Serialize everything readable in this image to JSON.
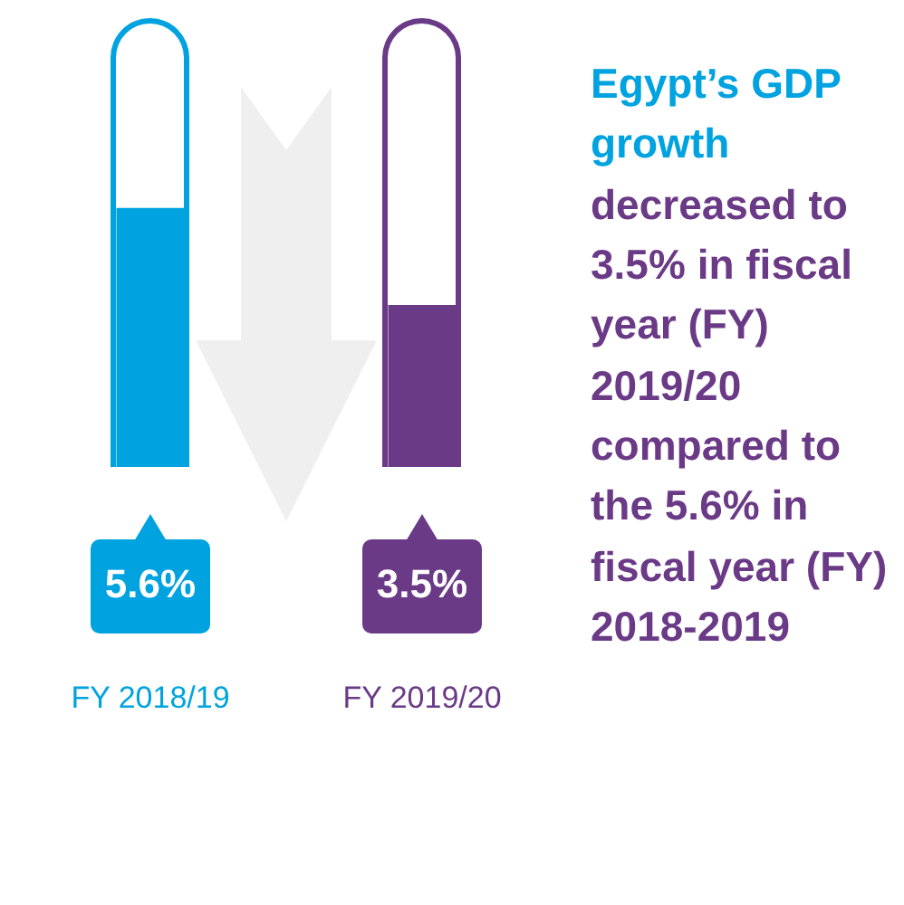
{
  "chart_data": {
    "type": "bar",
    "title": "Egypt’s GDP growth",
    "subtitle": "decreased to 3.5% in fiscal year (FY) 2019/20 compared to the 5.6% in fiscal year (FY) 2018-2019",
    "categories": [
      "FY 2018/19",
      "FY 2019/20"
    ],
    "values": [
      5.6,
      3.5
    ],
    "value_labels": [
      "5.6%",
      "3.5%"
    ],
    "colors": [
      "#00a3e0",
      "#6b3a87"
    ],
    "tick_labels": "x"
  }
}
